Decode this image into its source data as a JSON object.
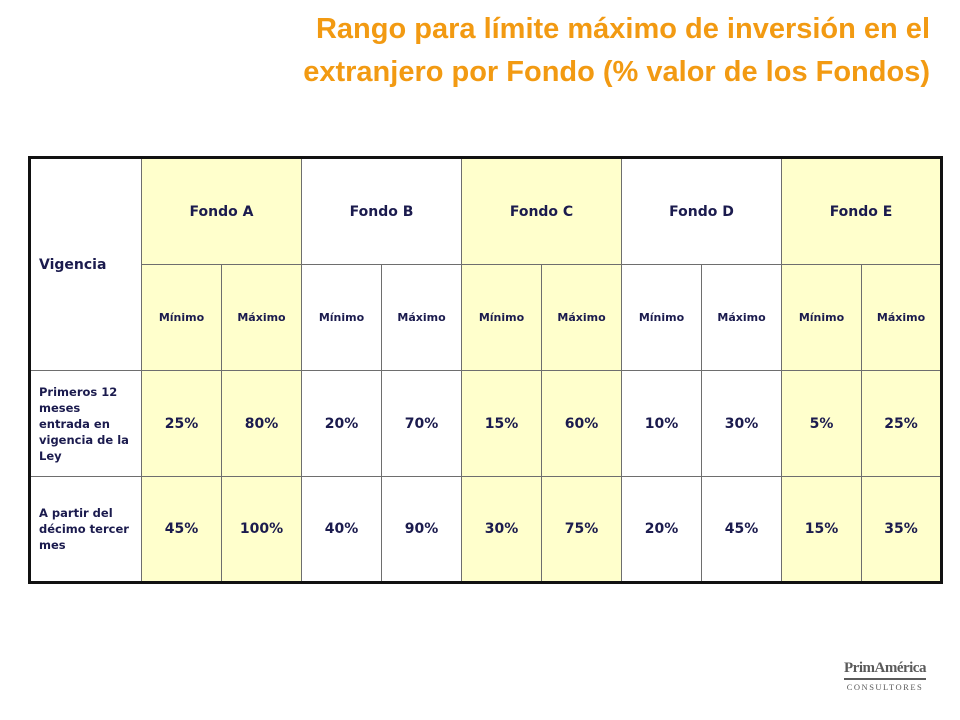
{
  "title": {
    "line1": "Rango para límite máximo de inversión en el",
    "line2": "extranjero por Fondo (% valor de los Fondos)"
  },
  "table": {
    "vigencia_header": "Vigencia",
    "funds": [
      {
        "name": "Fondo A",
        "fill": "yellow"
      },
      {
        "name": "Fondo B",
        "fill": "white"
      },
      {
        "name": "Fondo C",
        "fill": "yellow"
      },
      {
        "name": "Fondo D",
        "fill": "white"
      },
      {
        "name": "Fondo E",
        "fill": "yellow"
      }
    ],
    "sub_headers": {
      "min": "Mínimo",
      "max": "Máximo"
    },
    "rows": [
      {
        "label": "Primeros 12 meses entrada en vigencia de la Ley",
        "values": [
          "25%",
          "80%",
          "20%",
          "70%",
          "15%",
          "60%",
          "10%",
          "30%",
          "5%",
          "25%"
        ]
      },
      {
        "label": "A partir del décimo tercer mes",
        "values": [
          "45%",
          "100%",
          "40%",
          "90%",
          "30%",
          "75%",
          "20%",
          "45%",
          "15%",
          "35%"
        ]
      }
    ]
  },
  "logo": {
    "name": "PrimAmérica",
    "subtitle": "CONSULTORES"
  },
  "colors": {
    "title": "#f29a12",
    "table_text": "#1b1b4e",
    "yellow_fill": "#ffffcc",
    "border": "#111111"
  }
}
